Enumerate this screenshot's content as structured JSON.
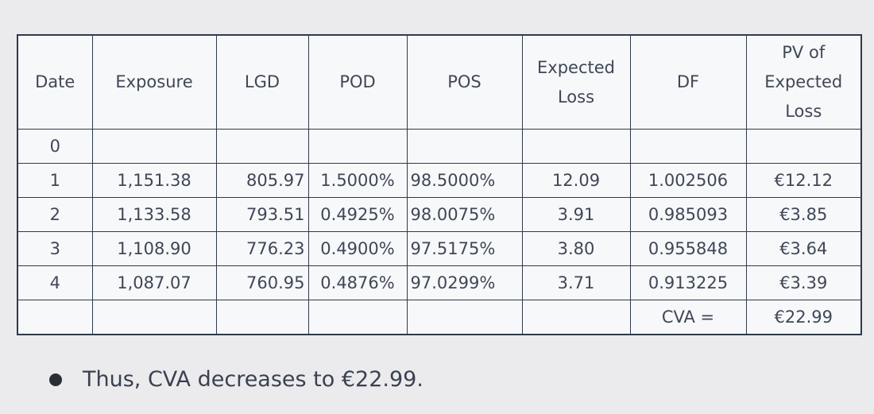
{
  "table": {
    "headers": [
      "Date",
      "Exposure",
      "LGD",
      "POD",
      "POS",
      "Expected Loss",
      "DF",
      "PV of Expected Loss"
    ],
    "rows": [
      [
        "0",
        "",
        "",
        "",
        "",
        "",
        "",
        ""
      ],
      [
        "1",
        "1,151.38",
        "805.97",
        "1.5000%",
        "98.5000%",
        "12.09",
        "1.002506",
        "€12.12"
      ],
      [
        "2",
        "1,133.58",
        "793.51",
        "0.4925%",
        "98.0075%",
        "3.91",
        "0.985093",
        "€3.85"
      ],
      [
        "3",
        "1,108.90",
        "776.23",
        "0.4900%",
        "97.5175%",
        "3.80",
        "0.955848",
        "€3.64"
      ],
      [
        "4",
        "1,087.07",
        "760.95",
        "0.4876%",
        "97.0299%",
        "3.71",
        "0.913225",
        "€3.39"
      ]
    ],
    "total_label": "CVA =",
    "total_value": "€22.99"
  },
  "bullet": {
    "text": "Thus, CVA decreases to €22.99."
  }
}
